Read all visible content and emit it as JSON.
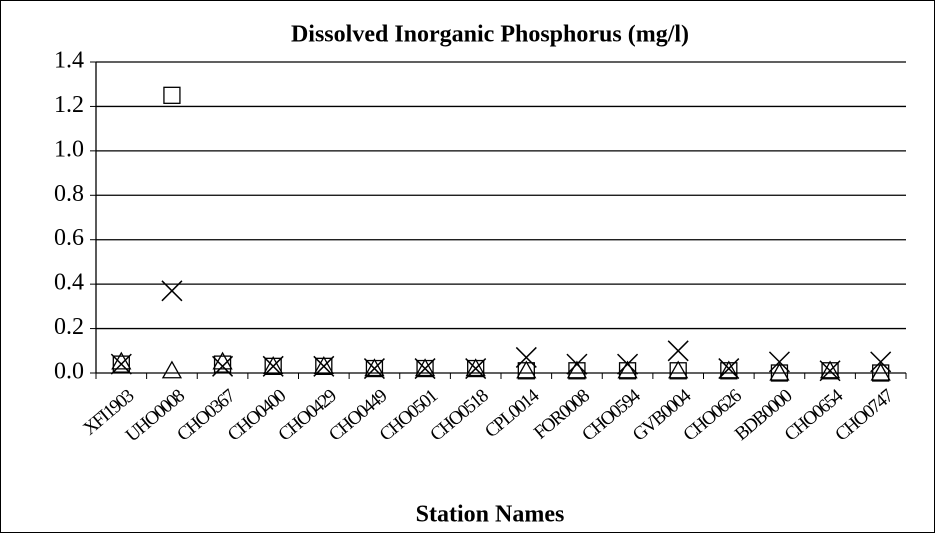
{
  "chart_data": {
    "type": "scatter",
    "title": "Dissolved Inorganic Phosphorus (mg/l)",
    "x_label": "Station Names",
    "categories": [
      "XFI1903",
      "UHO0008",
      "CHO0367",
      "CHO0400",
      "CHO0429",
      "CHO0449",
      "CHO0501",
      "CHO0518",
      "CPL0014",
      "FOR0008",
      "CHO0594",
      "GVB0004",
      "CHO0626",
      "BDB0000",
      "CHO0654",
      "CHO0747"
    ],
    "series": [
      {
        "marker": "square",
        "color": "#000000",
        "values": [
          0.04,
          1.25,
          0.04,
          0.03,
          0.03,
          0.02,
          0.02,
          0.02,
          0.01,
          0.01,
          0.01,
          0.01,
          0.01,
          0.0,
          0.01,
          0.0
        ]
      },
      {
        "marker": "x",
        "color": "#000000",
        "values": [
          0.04,
          0.37,
          0.03,
          0.03,
          0.03,
          0.02,
          0.02,
          0.02,
          0.07,
          0.04,
          0.04,
          0.1,
          0.02,
          0.05,
          0.01,
          0.05
        ]
      },
      {
        "marker": "triangle",
        "color": "#000000",
        "values": [
          0.05,
          0.01,
          0.05,
          0.03,
          0.03,
          0.02,
          0.02,
          0.02,
          0.01,
          0.01,
          0.01,
          0.01,
          0.01,
          0.0,
          0.01,
          0.0
        ]
      }
    ],
    "ylim": [
      0,
      1.4
    ],
    "yticks": [
      {
        "value": 0,
        "label": "0.0"
      },
      0.2,
      0.4,
      0.6,
      0.8,
      {
        "value": 1,
        "label": "1.0"
      },
      1.2,
      1.4
    ],
    "grid": true
  }
}
